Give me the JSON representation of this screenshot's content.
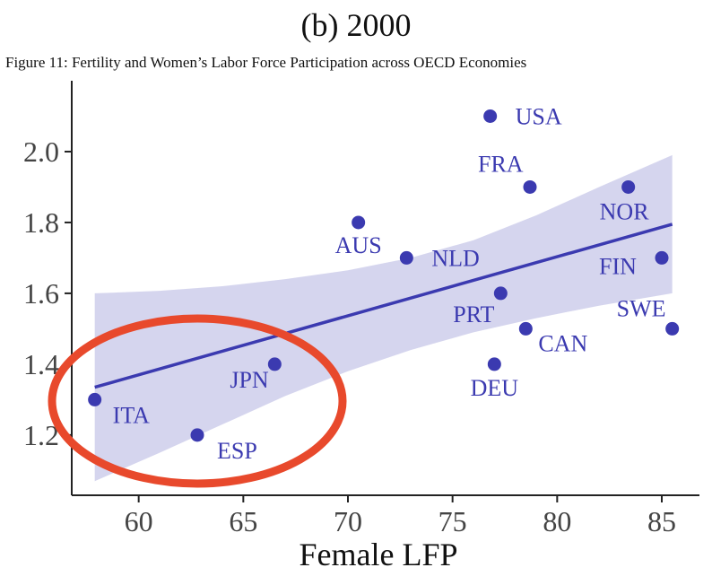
{
  "title": "(b) 2000",
  "subtitle": "Figure 11: Fertility and Women’s Labor Force Participation across OECD Economies",
  "chart_data": {
    "type": "scatter",
    "xlabel": "Female LFP",
    "ylabel": "",
    "xlim": [
      56.8,
      86.8
    ],
    "ylim": [
      1.03,
      2.2
    ],
    "xticks": [
      60,
      65,
      70,
      75,
      80,
      85
    ],
    "yticks": [
      1.2,
      1.4,
      1.6,
      1.8,
      2.0
    ],
    "ytick_labels": [
      "1.2",
      "1.4",
      "1.6",
      "1.8",
      "2.0"
    ],
    "points": [
      {
        "label": "ITA",
        "x": 57.9,
        "y": 1.3
      },
      {
        "label": "ESP",
        "x": 62.8,
        "y": 1.2
      },
      {
        "label": "JPN",
        "x": 66.5,
        "y": 1.4
      },
      {
        "label": "AUS",
        "x": 70.5,
        "y": 1.8
      },
      {
        "label": "NLD",
        "x": 72.8,
        "y": 1.7
      },
      {
        "label": "USA",
        "x": 76.8,
        "y": 2.1
      },
      {
        "label": "DEU",
        "x": 77.0,
        "y": 1.4
      },
      {
        "label": "PRT",
        "x": 77.3,
        "y": 1.6
      },
      {
        "label": "CAN",
        "x": 78.5,
        "y": 1.5
      },
      {
        "label": "FRA",
        "x": 78.7,
        "y": 1.9
      },
      {
        "label": "NOR",
        "x": 83.4,
        "y": 1.9
      },
      {
        "label": "FIN",
        "x": 85.0,
        "y": 1.7
      },
      {
        "label": "SWE",
        "x": 85.5,
        "y": 1.5
      }
    ],
    "fit_line": {
      "x": [
        57.9,
        85.5
      ],
      "y": [
        1.335,
        1.795
      ]
    },
    "confidence_band": {
      "x": [
        57.9,
        61,
        64,
        67,
        70,
        73,
        76,
        79,
        82,
        85.5
      ],
      "lower": [
        1.07,
        1.15,
        1.23,
        1.31,
        1.38,
        1.44,
        1.49,
        1.53,
        1.565,
        1.6
      ],
      "upper": [
        1.6,
        1.607,
        1.62,
        1.64,
        1.665,
        1.7,
        1.75,
        1.82,
        1.9,
        1.99
      ]
    },
    "annotation": {
      "shape": "ellipse",
      "encloses": [
        "ITA",
        "ESP",
        "JPN"
      ],
      "color": "#e8492c"
    },
    "colors": {
      "point": "#3b3ab0",
      "line": "#3b3ab0",
      "band": "#c7c7e8",
      "label": "#3b3ab0"
    }
  }
}
